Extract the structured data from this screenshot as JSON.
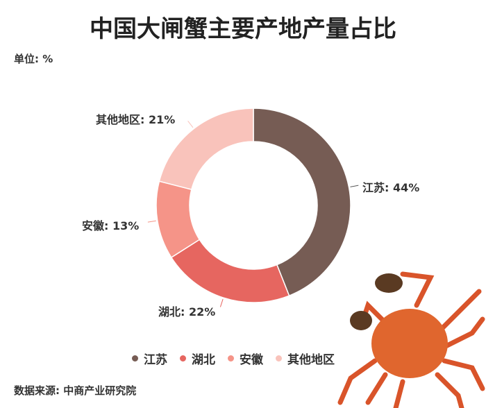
{
  "chart_data": {
    "type": "pie",
    "donut": true,
    "title": "中国大闸蟹主要产地产量占比",
    "unit_label": "单位: %",
    "source": "数据来源: 中商产业研究院",
    "legend_position": "bottom",
    "categories": [
      "江苏",
      "湖北",
      "安徽",
      "其他地区"
    ],
    "values": [
      44,
      22,
      13,
      21
    ],
    "labels": [
      "江苏: 44%",
      "湖北: 22%",
      "安徽: 13%",
      "其他地区: 21%"
    ],
    "colors": [
      "#765c54",
      "#e66660",
      "#f59488",
      "#f9c3bb"
    ]
  },
  "decoration": {
    "image": "crab-illustration"
  }
}
